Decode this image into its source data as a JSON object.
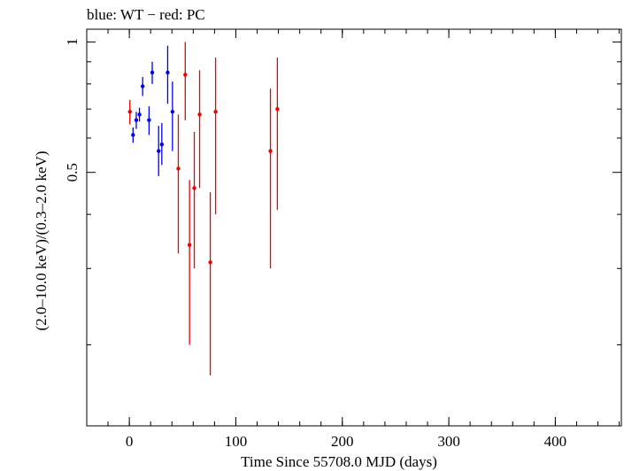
{
  "chart_data": {
    "type": "scatter",
    "title": "blue: WT − red: PC",
    "xlabel": "Time Since 55708.0 MJD (days)",
    "ylabel": "(2.0–10.0 keV)/(0.3–2.0 keV)",
    "xlim": [
      -40,
      462
    ],
    "ylim": [
      0.13,
      1.07
    ],
    "log_y": true,
    "x_ticks": [
      0,
      100,
      200,
      300,
      400
    ],
    "x_tick_labels": [
      "0",
      "100",
      "200",
      "300",
      "400"
    ],
    "x_minor_step": 20,
    "y_ticks": [
      0.5,
      1
    ],
    "y_tick_labels": [
      "0.5",
      "1"
    ],
    "y_minor_ticks": [
      0.2,
      0.3,
      0.4,
      0.6,
      0.7,
      0.8,
      0.9
    ],
    "grid": false,
    "series": [
      {
        "name": "WT",
        "color": "#0000ee",
        "points": [
          {
            "x": 3.5,
            "y": 0.61,
            "ylo": 0.585,
            "yhi": 0.635
          },
          {
            "x": 6.5,
            "y": 0.66,
            "ylo": 0.63,
            "yhi": 0.69
          },
          {
            "x": 9.5,
            "y": 0.68,
            "ylo": 0.655,
            "yhi": 0.705
          },
          {
            "x": 12.5,
            "y": 0.79,
            "ylo": 0.75,
            "yhi": 0.83
          },
          {
            "x": 18.5,
            "y": 0.66,
            "ylo": 0.61,
            "yhi": 0.71
          },
          {
            "x": 21.5,
            "y": 0.85,
            "ylo": 0.8,
            "yhi": 0.9
          },
          {
            "x": 27.5,
            "y": 0.56,
            "ylo": 0.49,
            "yhi": 0.64
          },
          {
            "x": 30.5,
            "y": 0.58,
            "ylo": 0.52,
            "yhi": 0.65
          },
          {
            "x": 36.0,
            "y": 0.85,
            "ylo": 0.72,
            "yhi": 0.98
          },
          {
            "x": 40.5,
            "y": 0.69,
            "ylo": 0.56,
            "yhi": 0.81
          }
        ]
      },
      {
        "name": "PC",
        "color": "#ee0000",
        "points": [
          {
            "x": 0.5,
            "y": 0.69,
            "ylo": 0.645,
            "yhi": 0.735
          },
          {
            "x": 46.0,
            "y": 0.51,
            "ylo": 0.325,
            "yhi": 0.68
          },
          {
            "x": 52.5,
            "y": 0.84,
            "ylo": 0.66,
            "yhi": 1.0
          },
          {
            "x": 56.5,
            "y": 0.34,
            "ylo": 0.2,
            "yhi": 0.48
          },
          {
            "x": 61.0,
            "y": 0.46,
            "ylo": 0.3,
            "yhi": 0.62
          },
          {
            "x": 66.0,
            "y": 0.68,
            "ylo": 0.46,
            "yhi": 0.86
          },
          {
            "x": 76.0,
            "y": 0.31,
            "ylo": 0.17,
            "yhi": 0.45
          },
          {
            "x": 81.0,
            "y": 0.69,
            "ylo": 0.4,
            "yhi": 0.92
          },
          {
            "x": 132.5,
            "y": 0.56,
            "ylo": 0.3,
            "yhi": 0.78
          },
          {
            "x": 139.0,
            "y": 0.7,
            "ylo": 0.41,
            "yhi": 0.92
          }
        ]
      }
    ]
  }
}
